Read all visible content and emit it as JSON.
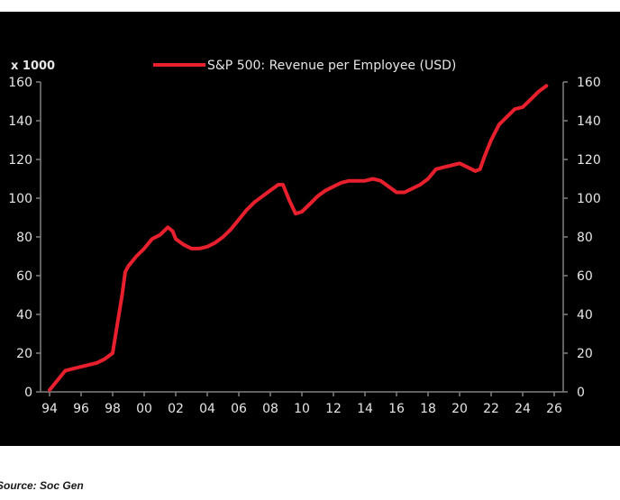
{
  "chart_data": {
    "type": "line",
    "title": "",
    "unit_label": "x 1000",
    "xlabel": "",
    "ylabel": "",
    "x_tick_labels": [
      "94",
      "96",
      "98",
      "00",
      "02",
      "04",
      "06",
      "08",
      "10",
      "12",
      "14",
      "16",
      "18",
      "20",
      "22",
      "24",
      "26"
    ],
    "x_range": [
      1994,
      2026
    ],
    "y_ticks": [
      0,
      20,
      40,
      60,
      80,
      100,
      120,
      140,
      160
    ],
    "ylim": [
      0,
      160
    ],
    "grid": false,
    "legend_position": "top",
    "series": [
      {
        "name": "S&P 500: Revenue per Employee (USD)",
        "color": "#e8202e",
        "x": [
          1994.0,
          1994.5,
          1995.0,
          1995.5,
          1996.0,
          1996.5,
          1997.0,
          1997.5,
          1998.0,
          1998.3,
          1998.6,
          1998.8,
          1999.0,
          1999.5,
          2000.0,
          2000.5,
          2001.0,
          2001.5,
          2001.8,
          2002.0,
          2002.5,
          2003.0,
          2003.5,
          2004.0,
          2004.5,
          2005.0,
          2005.5,
          2006.0,
          2006.5,
          2007.0,
          2007.5,
          2008.0,
          2008.5,
          2008.8,
          2009.2,
          2009.6,
          2010.0,
          2010.5,
          2011.0,
          2011.5,
          2012.0,
          2012.5,
          2013.0,
          2013.5,
          2014.0,
          2014.5,
          2015.0,
          2015.5,
          2016.0,
          2016.5,
          2017.0,
          2017.5,
          2018.0,
          2018.5,
          2019.0,
          2019.5,
          2020.0,
          2020.5,
          2021.0,
          2021.3,
          2021.6,
          2022.0,
          2022.5,
          2023.0,
          2023.5,
          2024.0,
          2024.5,
          2025.0,
          2025.5
        ],
        "y": [
          1,
          6,
          11,
          12,
          13,
          14,
          15,
          17,
          20,
          35,
          50,
          62,
          65,
          70,
          74,
          79,
          81,
          85,
          83,
          79,
          76,
          74,
          74,
          75,
          77,
          80,
          84,
          89,
          94,
          98,
          101,
          104,
          107,
          107,
          99,
          92,
          93,
          97,
          101,
          104,
          106,
          108,
          109,
          109,
          109,
          110,
          109,
          106,
          103,
          103,
          105,
          107,
          110,
          115,
          116,
          117,
          118,
          116,
          114,
          115,
          122,
          130,
          138,
          142,
          146,
          147,
          151,
          155,
          158
        ]
      }
    ]
  },
  "source_note": "Source: Soc Gen"
}
